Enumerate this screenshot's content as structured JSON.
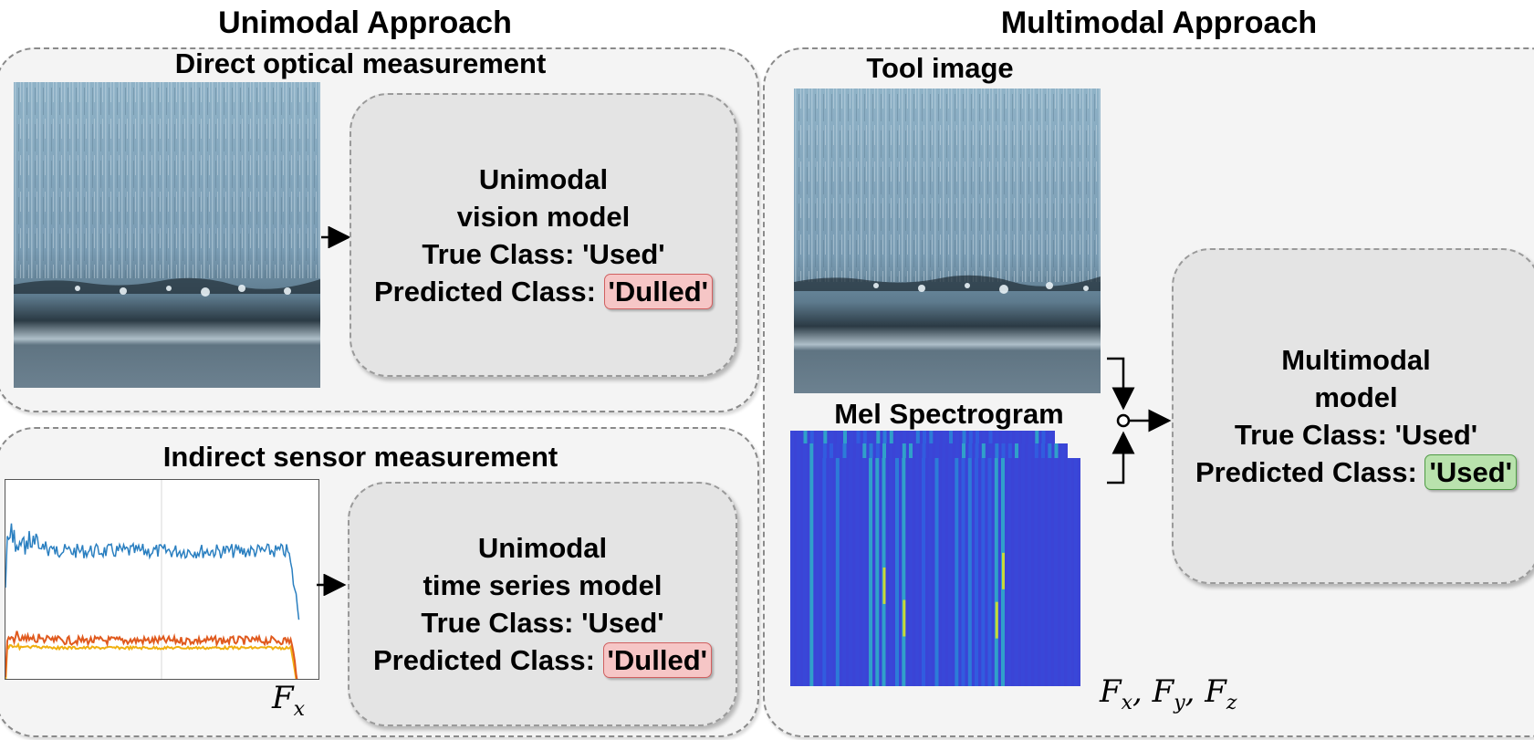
{
  "unimodal": {
    "title": "Unimodal Approach",
    "direct": {
      "subtitle": "Direct optical measurement",
      "model": {
        "name_line1": "Unimodal",
        "name_line2": "vision model",
        "true_class": "True Class: 'Used'",
        "predicted_prefix": "Predicted Class: ",
        "predicted_value": "'Dulled'"
      }
    },
    "indirect": {
      "subtitle": "Indirect sensor measurement",
      "signal_label": "F",
      "signal_sub": "x",
      "model": {
        "name_line1": "Unimodal",
        "name_line2": "time series model",
        "true_class": "True Class: 'Used'",
        "predicted_prefix": "Predicted Class: ",
        "predicted_value": "'Dulled'"
      }
    }
  },
  "multimodal": {
    "title": "Multimodal Approach",
    "tool_image_label": "Tool image",
    "spectrogram_label": "Mel Spectrogram",
    "signal_labels": [
      {
        "base": "F",
        "sub": "x"
      },
      {
        "base": "F",
        "sub": "y"
      },
      {
        "base": "F",
        "sub": "z"
      }
    ],
    "model": {
      "name_line1": "Multimodal",
      "name_line2": "model",
      "true_class": "True Class: 'Used'",
      "predicted_prefix": "Predicted Class: ",
      "predicted_value": "'Used'"
    }
  },
  "colors": {
    "wrong_prediction": "#f6c6c6",
    "correct_prediction": "#b9e2ad",
    "series_fx": "#2a7fc0",
    "series_fy": "#e05a1e",
    "series_fz": "#f0b010"
  }
}
